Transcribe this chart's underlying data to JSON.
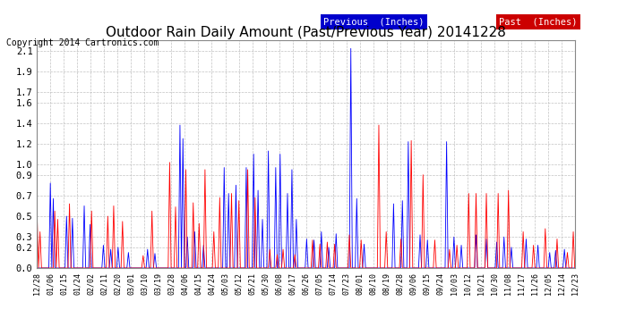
{
  "title": "Outdoor Rain Daily Amount (Past/Previous Year) 20141228",
  "copyright": "Copyright 2014 Cartronics.com",
  "legend_previous": "Previous  (Inches)",
  "legend_past": "Past  (Inches)",
  "yticks": [
    0.0,
    0.2,
    0.3,
    0.5,
    0.7,
    0.9,
    1.0,
    1.2,
    1.4,
    1.6,
    1.7,
    1.9,
    2.1
  ],
  "ylim": [
    0,
    2.2
  ],
  "color_previous": "#0000ff",
  "color_past": "#ff0000",
  "bg_color": "#ffffff",
  "grid_color": "#bbbbbb",
  "title_fontsize": 11,
  "copyright_fontsize": 7,
  "legend_fontsize": 7.5,
  "xtick_fontsize": 6,
  "ytick_fontsize": 7.5,
  "xtick_labels": [
    "12/28",
    "01/06",
    "01/15",
    "01/24",
    "02/02",
    "02/11",
    "02/20",
    "03/01",
    "03/10",
    "03/19",
    "03/28",
    "04/06",
    "04/15",
    "04/24",
    "05/03",
    "05/12",
    "05/21",
    "05/30",
    "06/08",
    "06/17",
    "06/26",
    "07/05",
    "07/14",
    "07/23",
    "08/01",
    "08/10",
    "08/19",
    "08/28",
    "09/06",
    "09/15",
    "09/24",
    "10/03",
    "10/12",
    "10/21",
    "10/30",
    "11/08",
    "11/17",
    "11/26",
    "12/05",
    "12/14",
    "12/23"
  ],
  "n_days": 366
}
